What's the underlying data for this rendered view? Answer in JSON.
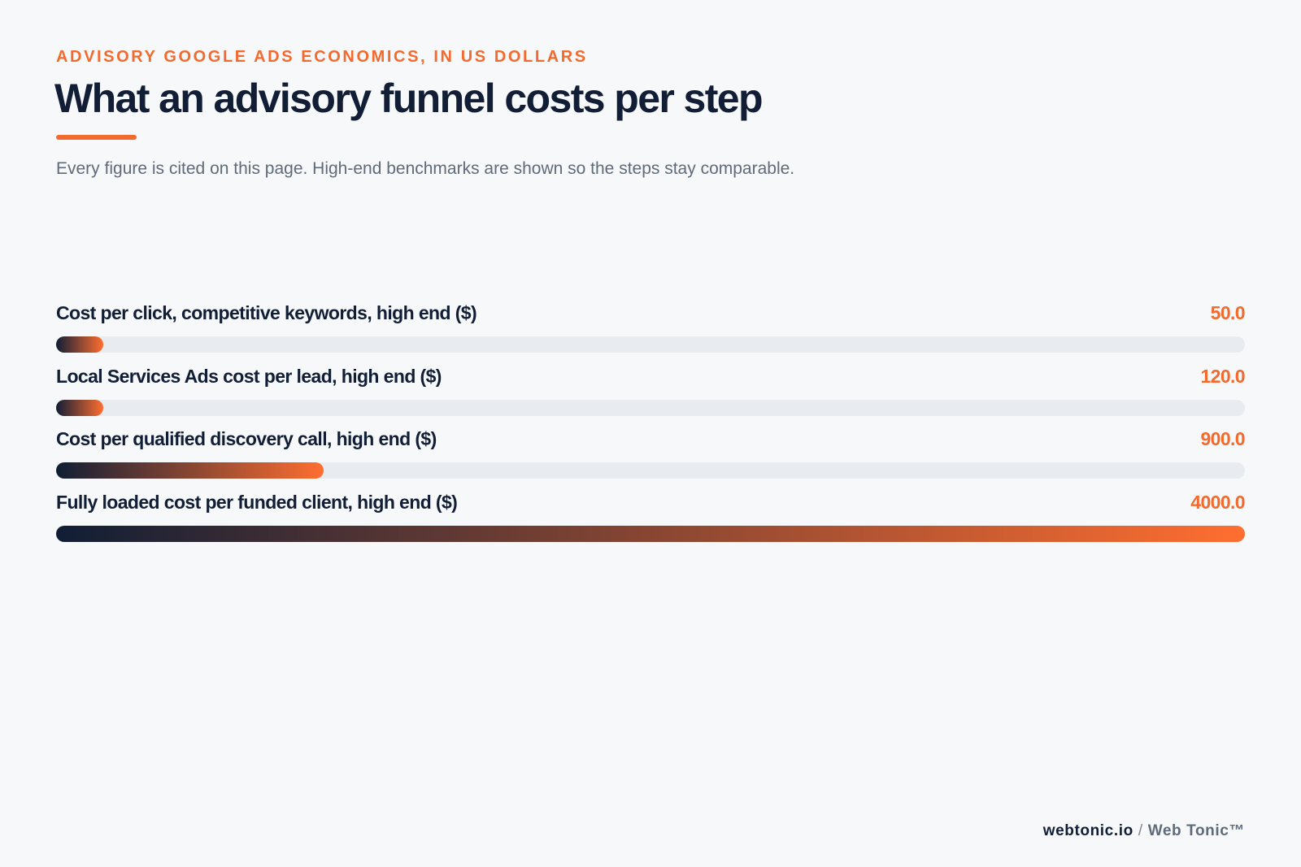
{
  "header": {
    "eyebrow": "ADVISORY GOOGLE ADS ECONOMICS, IN US DOLLARS",
    "title": "What an advisory funnel costs per step",
    "subtitle": "Every figure is cited on this page. High-end benchmarks are shown so the steps stay comparable."
  },
  "chart_data": {
    "type": "bar",
    "orientation": "horizontal",
    "categories": [
      "Cost per click, competitive keywords, high end ($)",
      "Local Services Ads cost per lead, high end ($)",
      "Cost per qualified discovery call, high end ($)",
      "Fully loaded cost per funded client, high end ($)"
    ],
    "values": [
      50.0,
      120.0,
      900.0,
      4000.0
    ],
    "value_labels": [
      "50.0",
      "120.0",
      "900.0",
      "4000.0"
    ],
    "xlim": [
      0,
      4000
    ],
    "min_visible_fraction": 0.04,
    "grid": false,
    "legend": "none",
    "colors": {
      "gradient_start": "#111e35",
      "gradient_end": "#ff6e30",
      "track": "#e8ebef",
      "value_text": "#f26a2e"
    }
  },
  "footer": {
    "domain": "webtonic.io",
    "separator": "/",
    "brand": "Web Tonic™"
  }
}
